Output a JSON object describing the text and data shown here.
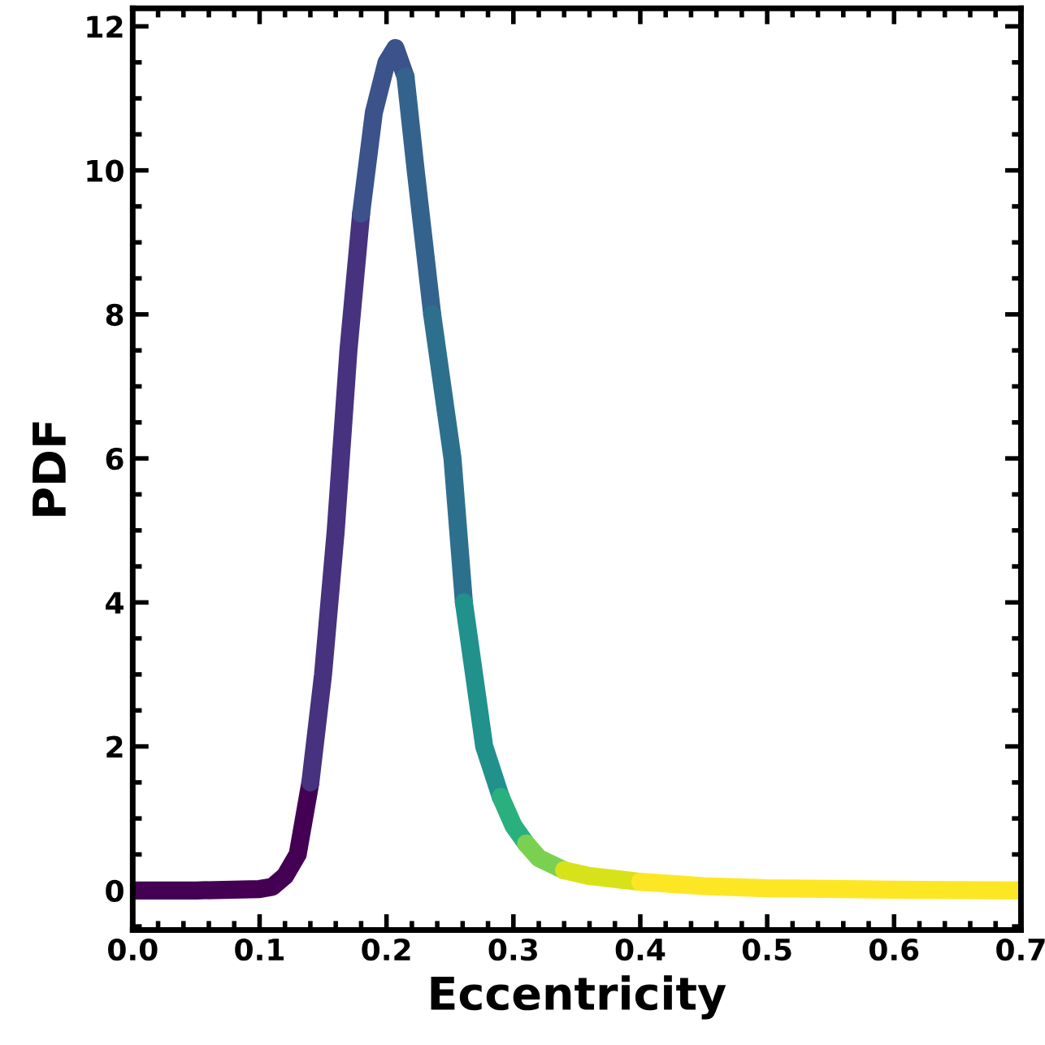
{
  "chart_data": {
    "type": "line",
    "xlabel": "Eccentricity",
    "ylabel": "PDF",
    "xlim": [
      0.0,
      0.7
    ],
    "ylim": [
      -0.55,
      12.25
    ],
    "xticks": [
      {
        "value": 0.0,
        "label": "0.0"
      },
      0.1,
      0.2,
      0.3,
      0.4,
      0.5,
      0.6,
      0.7
    ],
    "yticks": [
      0,
      2,
      4,
      6,
      8,
      10,
      12
    ],
    "grid": false,
    "legend": false,
    "marker": "none",
    "line_style": "solid",
    "series": [
      {
        "color": "#440154",
        "x": [
          0.0,
          0.05,
          0.1,
          0.11,
          0.12,
          0.13,
          0.14
        ],
        "values": [
          0.0,
          0.0,
          0.02,
          0.05,
          0.2,
          0.5,
          1.5
        ]
      },
      {
        "color": "#46327e",
        "x": [
          0.14,
          0.15,
          0.16,
          0.17,
          0.18
        ],
        "values": [
          1.5,
          3.0,
          5.0,
          7.5,
          9.4
        ]
      },
      {
        "color": "#3b528b",
        "x": [
          0.18,
          0.19,
          0.2,
          0.207,
          0.215
        ],
        "values": [
          9.4,
          10.8,
          11.5,
          11.7,
          11.3
        ]
      },
      {
        "color": "#33638d",
        "x": [
          0.215,
          0.223,
          0.236
        ],
        "values": [
          11.3,
          10.0,
          8.0
        ]
      },
      {
        "color": "#2d708e",
        "x": [
          0.236,
          0.252,
          0.261
        ],
        "values": [
          8.0,
          6.0,
          4.0
        ]
      },
      {
        "color": "#21918c",
        "x": [
          0.261,
          0.277,
          0.29
        ],
        "values": [
          4.0,
          2.0,
          1.3
        ]
      },
      {
        "color": "#2ab07f",
        "x": [
          0.29,
          0.3,
          0.31
        ],
        "values": [
          1.3,
          0.9,
          0.65
        ]
      },
      {
        "color": "#7ad151",
        "x": [
          0.31,
          0.32,
          0.34
        ],
        "values": [
          0.65,
          0.45,
          0.28
        ]
      },
      {
        "color": "#d8e219",
        "x": [
          0.34,
          0.36,
          0.4
        ],
        "values": [
          0.28,
          0.2,
          0.12
        ]
      },
      {
        "color": "#fde725",
        "x": [
          0.4,
          0.45,
          0.5,
          0.6,
          0.7
        ],
        "values": [
          0.12,
          0.06,
          0.03,
          0.01,
          0.0
        ]
      }
    ]
  }
}
